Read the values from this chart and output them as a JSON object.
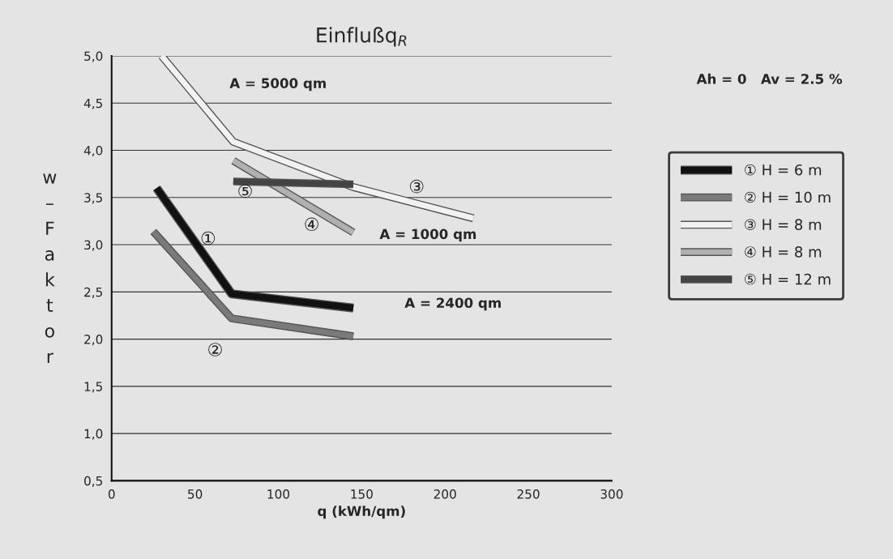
{
  "chart_data": {
    "type": "line",
    "title": "Einflußq$_{R}$",
    "xlabel": "q (kWh/qm)",
    "ylabel": "w – Faktor",
    "xlim": [
      0,
      300
    ],
    "xticks": [
      0,
      50,
      100,
      150,
      200,
      250,
      300
    ],
    "ylim": [
      0.5,
      5.0
    ],
    "yticks": [
      {
        "value": 0.5,
        "label": "0,5"
      },
      {
        "value": 1.0,
        "label": "1,0"
      },
      {
        "value": 1.5,
        "label": "1,5"
      },
      {
        "value": 2.0,
        "label": "2,0"
      },
      {
        "value": 2.5,
        "label": "2,5"
      },
      {
        "value": 3.0,
        "label": "3,0"
      },
      {
        "value": 3.5,
        "label": "3,5"
      },
      {
        "value": 4.0,
        "label": "4,0"
      },
      {
        "value": 4.5,
        "label": "4,5"
      },
      {
        "value": 5.0,
        "label": "5,0"
      }
    ],
    "grid": "y",
    "legend": "right",
    "marker": "none",
    "line_style": "solid",
    "series": [
      {
        "name": "① H = 6 m",
        "color": "#111111",
        "x": [
          27,
          72,
          145
        ],
        "values": [
          3.6,
          2.48,
          2.33
        ]
      },
      {
        "name": "② H = 10 m",
        "color": "#7a7a7a",
        "x": [
          25,
          72,
          145
        ],
        "values": [
          3.14,
          2.22,
          2.03
        ]
      },
      {
        "name": "③ H = 8 m",
        "color": "#f2f2f2",
        "x": [
          30,
          73,
          145,
          217
        ],
        "values": [
          5.0,
          4.09,
          3.61,
          3.28
        ]
      },
      {
        "name": "④ H = 8 m",
        "color": "#b0b0b0",
        "x": [
          73,
          145
        ],
        "values": [
          3.89,
          3.13
        ]
      },
      {
        "name": "⑤ H = 12 m",
        "color": "#444444",
        "x": [
          73,
          145
        ],
        "values": [
          3.67,
          3.64
        ]
      }
    ],
    "annotations": [
      "A = 5000 qm",
      "A = 1000 qm",
      "A = 2400 qm",
      "①",
      "②",
      "③",
      "④",
      "⑤",
      "Ah = 0   Av = 2.5 %"
    ]
  }
}
